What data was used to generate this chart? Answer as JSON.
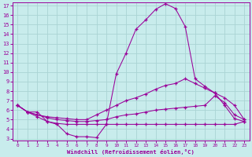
{
  "xlabel": "Windchill (Refroidissement éolien,°C)",
  "bg_color": "#c8ecec",
  "line_color": "#990099",
  "grid_color": "#aad4d4",
  "xlim": [
    -0.5,
    23.5
  ],
  "ylim": [
    2.8,
    17.3
  ],
  "yticks": [
    3,
    4,
    5,
    6,
    7,
    8,
    9,
    10,
    11,
    12,
    13,
    14,
    15,
    16,
    17
  ],
  "xticks": [
    0,
    1,
    2,
    3,
    4,
    5,
    6,
    7,
    8,
    9,
    10,
    11,
    12,
    13,
    14,
    15,
    16,
    17,
    18,
    19,
    20,
    21,
    22,
    23
  ],
  "line1_x": [
    0,
    1,
    2,
    3,
    4,
    5,
    6,
    7,
    8,
    9,
    10,
    11,
    12,
    13,
    14,
    15,
    16,
    17,
    18,
    19,
    20,
    21,
    22,
    23
  ],
  "line1_y": [
    6.5,
    5.8,
    5.8,
    4.8,
    4.5,
    3.5,
    3.2,
    3.2,
    3.1,
    4.5,
    9.8,
    12.0,
    14.5,
    15.5,
    16.6,
    17.2,
    16.7,
    14.8,
    9.3,
    8.5,
    7.8,
    6.5,
    5.1,
    4.8
  ],
  "line2_x": [
    0,
    1,
    2,
    3,
    4,
    5,
    6,
    7,
    8,
    9,
    10,
    11,
    12,
    13,
    14,
    15,
    16,
    17,
    18,
    19,
    20,
    21,
    22,
    23
  ],
  "line2_y": [
    6.5,
    5.8,
    5.5,
    5.3,
    5.2,
    5.1,
    5.0,
    5.0,
    5.5,
    6.0,
    6.5,
    7.0,
    7.3,
    7.7,
    8.2,
    8.6,
    8.8,
    9.3,
    8.8,
    8.3,
    7.8,
    7.3,
    6.5,
    5.0
  ],
  "line3_x": [
    0,
    1,
    2,
    3,
    4,
    5,
    6,
    7,
    8,
    9,
    10,
    11,
    12,
    13,
    14,
    15,
    16,
    17,
    18,
    19,
    20,
    21,
    22,
    23
  ],
  "line3_y": [
    6.5,
    5.8,
    5.5,
    5.2,
    5.0,
    4.9,
    4.8,
    4.8,
    4.9,
    5.0,
    5.3,
    5.5,
    5.6,
    5.8,
    6.0,
    6.1,
    6.2,
    6.3,
    6.4,
    6.5,
    7.5,
    6.8,
    5.5,
    5.0
  ],
  "line4_x": [
    0,
    1,
    2,
    3,
    4,
    5,
    6,
    7,
    8,
    9,
    10,
    11,
    12,
    13,
    14,
    15,
    16,
    17,
    18,
    19,
    20,
    21,
    22,
    23
  ],
  "line4_y": [
    6.5,
    5.8,
    5.3,
    4.8,
    4.6,
    4.5,
    4.5,
    4.5,
    4.5,
    4.5,
    4.5,
    4.5,
    4.5,
    4.5,
    4.5,
    4.5,
    4.5,
    4.5,
    4.5,
    4.5,
    4.5,
    4.5,
    4.5,
    4.8
  ]
}
